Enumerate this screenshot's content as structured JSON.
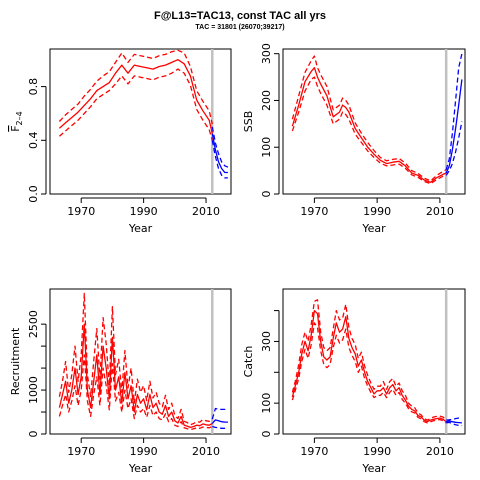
{
  "title": "F@L13=TAC13, const TAC all yrs",
  "subtitle": "TAC = 31801 (26070;39217)",
  "colors": {
    "historic": "#ff0000",
    "projection": "#0000ff",
    "marker": "#c0c0c0",
    "axis": "#000000"
  },
  "chart_data": [
    {
      "type": "line",
      "panel": "top-left",
      "xlabel": "Year",
      "ylabel": "F̅ 2–4",
      "ylabel_main": "F",
      "ylabel_sub": "2–4",
      "xlim": [
        1960,
        2018
      ],
      "ylim": [
        0,
        1.08
      ],
      "xticks": [
        1970,
        1990,
        2010
      ],
      "yticks": [
        0.0,
        0.4,
        0.8
      ],
      "ytick_labels": [
        "0.0",
        "0.4",
        "0.8"
      ],
      "vline": 2012,
      "historic": {
        "x": [
          1963,
          1965,
          1967,
          1969,
          1971,
          1973,
          1975,
          1977,
          1979,
          1981,
          1983,
          1985,
          1987,
          1989,
          1991,
          1993,
          1995,
          1997,
          1999,
          2001,
          2003,
          2005,
          2007,
          2009,
          2011,
          2012
        ],
        "mid": [
          0.49,
          0.53,
          0.57,
          0.61,
          0.66,
          0.71,
          0.77,
          0.8,
          0.83,
          0.9,
          0.96,
          0.9,
          0.96,
          0.95,
          0.94,
          0.93,
          0.95,
          0.96,
          0.98,
          1.0,
          0.97,
          0.88,
          0.7,
          0.62,
          0.55,
          0.45
        ],
        "low": [
          0.43,
          0.47,
          0.51,
          0.55,
          0.6,
          0.65,
          0.71,
          0.74,
          0.77,
          0.82,
          0.88,
          0.82,
          0.88,
          0.87,
          0.86,
          0.85,
          0.87,
          0.88,
          0.9,
          0.93,
          0.9,
          0.81,
          0.63,
          0.55,
          0.48,
          0.4
        ],
        "high": [
          0.54,
          0.59,
          0.63,
          0.67,
          0.73,
          0.78,
          0.84,
          0.88,
          0.91,
          0.98,
          1.05,
          0.98,
          1.04,
          1.03,
          1.02,
          1.01,
          1.03,
          1.04,
          1.06,
          1.07,
          1.05,
          0.95,
          0.77,
          0.69,
          0.62,
          0.52
        ]
      },
      "projection": {
        "x": [
          2012,
          2013,
          2014,
          2015,
          2016,
          2017
        ],
        "mid": [
          0.45,
          0.33,
          0.24,
          0.19,
          0.16,
          0.16
        ],
        "low": [
          0.4,
          0.28,
          0.19,
          0.14,
          0.12,
          0.12
        ],
        "high": [
          0.5,
          0.38,
          0.3,
          0.24,
          0.21,
          0.2
        ]
      }
    },
    {
      "type": "line",
      "panel": "top-right",
      "xlabel": "Year",
      "ylabel": "SSB",
      "xlim": [
        1960,
        2018
      ],
      "ylim": [
        0,
        310
      ],
      "xticks": [
        1970,
        1990,
        2010
      ],
      "yticks": [
        0,
        100,
        200,
        300
      ],
      "ytick_labels": [
        "0",
        "100",
        "200",
        "300"
      ],
      "vline": 2012,
      "historic": {
        "x": [
          1963,
          1965,
          1967,
          1969,
          1970,
          1971,
          1972,
          1974,
          1976,
          1978,
          1979,
          1980,
          1981,
          1983,
          1985,
          1987,
          1989,
          1991,
          1993,
          1995,
          1997,
          1999,
          2001,
          2003,
          2005,
          2007,
          2009,
          2011,
          2012
        ],
        "mid": [
          145,
          190,
          240,
          262,
          270,
          250,
          235,
          210,
          165,
          175,
          190,
          185,
          175,
          140,
          120,
          100,
          85,
          72,
          65,
          68,
          70,
          60,
          45,
          40,
          30,
          25,
          35,
          42,
          45
        ],
        "low": [
          135,
          175,
          220,
          245,
          250,
          230,
          215,
          190,
          150,
          160,
          175,
          170,
          160,
          128,
          110,
          92,
          78,
          66,
          60,
          62,
          64,
          55,
          41,
          36,
          27,
          22,
          31,
          38,
          40
        ],
        "high": [
          160,
          210,
          260,
          285,
          295,
          270,
          255,
          230,
          180,
          190,
          205,
          200,
          190,
          152,
          130,
          110,
          93,
          78,
          71,
          74,
          76,
          66,
          50,
          44,
          34,
          28,
          40,
          48,
          52
        ]
      },
      "projection": {
        "x": [
          2012,
          2013,
          2014,
          2015,
          2016,
          2017
        ],
        "mid": [
          45,
          60,
          95,
          140,
          190,
          245
        ],
        "low": [
          40,
          50,
          65,
          90,
          120,
          155
        ],
        "high": [
          52,
          75,
          130,
          200,
          270,
          300
        ]
      }
    },
    {
      "type": "line",
      "panel": "bottom-left",
      "xlabel": "Year",
      "ylabel": "Recruitment",
      "xlim": [
        1960,
        2018
      ],
      "ylim": [
        0,
        3300
      ],
      "xticks": [
        1970,
        1990,
        2010
      ],
      "yticks": [
        0,
        500,
        1000,
        1500,
        2000,
        2500
      ],
      "ytick_labels": [
        "0",
        "",
        "1000",
        "",
        "",
        "2500"
      ],
      "vline": 2012,
      "historic": {
        "x": [
          1963,
          1964,
          1965,
          1966,
          1967,
          1968,
          1969,
          1970,
          1971,
          1972,
          1973,
          1974,
          1975,
          1976,
          1977,
          1978,
          1979,
          1980,
          1981,
          1982,
          1983,
          1984,
          1985,
          1986,
          1987,
          1988,
          1989,
          1990,
          1991,
          1992,
          1993,
          1994,
          1995,
          1996,
          1997,
          1998,
          1999,
          2000,
          2001,
          2002,
          2003,
          2004,
          2005,
          2006,
          2007,
          2008,
          2009,
          2010,
          2011,
          2012
        ],
        "mid": [
          600,
          900,
          1200,
          700,
          1000,
          1500,
          900,
          1300,
          2500,
          1000,
          600,
          1200,
          1800,
          900,
          2000,
          1500,
          800,
          2200,
          1000,
          1300,
          700,
          1400,
          800,
          1100,
          500,
          900,
          700,
          800,
          550,
          900,
          600,
          700,
          500,
          450,
          650,
          400,
          500,
          300,
          250,
          400,
          200,
          180,
          150,
          170,
          200,
          190,
          230,
          210,
          200,
          240
        ],
        "low": [
          400,
          650,
          900,
          500,
          750,
          1100,
          650,
          1000,
          1800,
          750,
          400,
          900,
          1300,
          650,
          1500,
          1100,
          550,
          1600,
          750,
          950,
          500,
          1000,
          580,
          800,
          350,
          650,
          500,
          580,
          380,
          650,
          420,
          500,
          350,
          320,
          460,
          280,
          350,
          200,
          170,
          280,
          140,
          120,
          100,
          120,
          140,
          130,
          160,
          150,
          140,
          170
        ],
        "high": [
          850,
          1200,
          1650,
          950,
          1350,
          2000,
          1200,
          1800,
          3200,
          1350,
          850,
          1650,
          2400,
          1250,
          2650,
          2050,
          1100,
          2900,
          1350,
          1700,
          950,
          1900,
          1050,
          1500,
          700,
          1250,
          950,
          1100,
          760,
          1200,
          820,
          950,
          700,
          620,
          880,
          560,
          700,
          420,
          350,
          560,
          290,
          260,
          210,
          240,
          280,
          270,
          330,
          300,
          290,
          340
        ]
      },
      "projection": {
        "x": [
          2012,
          2013,
          2014,
          2015,
          2016,
          2017
        ],
        "mid": [
          240,
          320,
          300,
          280,
          270,
          270
        ],
        "low": [
          170,
          150,
          140,
          130,
          130,
          130
        ],
        "high": [
          340,
          580,
          560,
          560,
          560,
          560
        ]
      }
    },
    {
      "type": "line",
      "panel": "bottom-right",
      "xlabel": "Year",
      "ylabel": "Catch",
      "xlim": [
        1960,
        2018
      ],
      "ylim": [
        0,
        470
      ],
      "xticks": [
        1970,
        1990,
        2010
      ],
      "yticks": [
        0,
        100,
        200,
        300,
        400
      ],
      "ytick_labels": [
        "0",
        "100",
        "",
        "300",
        ""
      ],
      "vline": 2012,
      "historic": {
        "x": [
          1963,
          1964,
          1965,
          1966,
          1967,
          1968,
          1969,
          1970,
          1971,
          1972,
          1973,
          1974,
          1975,
          1976,
          1977,
          1978,
          1979,
          1980,
          1981,
          1982,
          1983,
          1984,
          1985,
          1986,
          1987,
          1988,
          1989,
          1990,
          1991,
          1992,
          1993,
          1994,
          1995,
          1996,
          1997,
          1998,
          1999,
          2000,
          2001,
          2002,
          2003,
          2004,
          2005,
          2006,
          2007,
          2008,
          2009,
          2010,
          2011,
          2012
        ],
        "mid": [
          120,
          160,
          200,
          260,
          300,
          270,
          320,
          400,
          390,
          300,
          250,
          240,
          250,
          310,
          360,
          330,
          340,
          380,
          310,
          280,
          260,
          220,
          240,
          200,
          170,
          150,
          130,
          140,
          140,
          150,
          130,
          150,
          160,
          140,
          150,
          125,
          110,
          90,
          80,
          75,
          60,
          55,
          45,
          40,
          45,
          48,
          50,
          52,
          48,
          40
        ],
        "low": [
          110,
          145,
          180,
          235,
          275,
          245,
          290,
          360,
          345,
          270,
          225,
          215,
          225,
          280,
          320,
          295,
          305,
          340,
          280,
          255,
          235,
          200,
          220,
          180,
          155,
          135,
          118,
          125,
          125,
          135,
          118,
          135,
          145,
          125,
          135,
          112,
          100,
          82,
          72,
          68,
          54,
          49,
          40,
          36,
          40,
          43,
          45,
          47,
          43,
          36
        ],
        "high": [
          135,
          175,
          225,
          290,
          330,
          300,
          355,
          430,
          435,
          330,
          280,
          270,
          280,
          340,
          400,
          370,
          375,
          420,
          345,
          310,
          290,
          245,
          265,
          220,
          190,
          165,
          145,
          155,
          155,
          170,
          145,
          170,
          180,
          155,
          165,
          140,
          125,
          100,
          90,
          85,
          68,
          62,
          50,
          45,
          50,
          55,
          57,
          58,
          55,
          45
        ]
      },
      "projection": {
        "x": [
          2012,
          2013,
          2014,
          2015,
          2016,
          2017
        ],
        "mid": [
          40,
          42,
          40,
          38,
          37,
          36
        ],
        "low": [
          36,
          38,
          33,
          30,
          28,
          27
        ],
        "high": [
          45,
          46,
          47,
          50,
          52,
          54
        ]
      }
    }
  ]
}
